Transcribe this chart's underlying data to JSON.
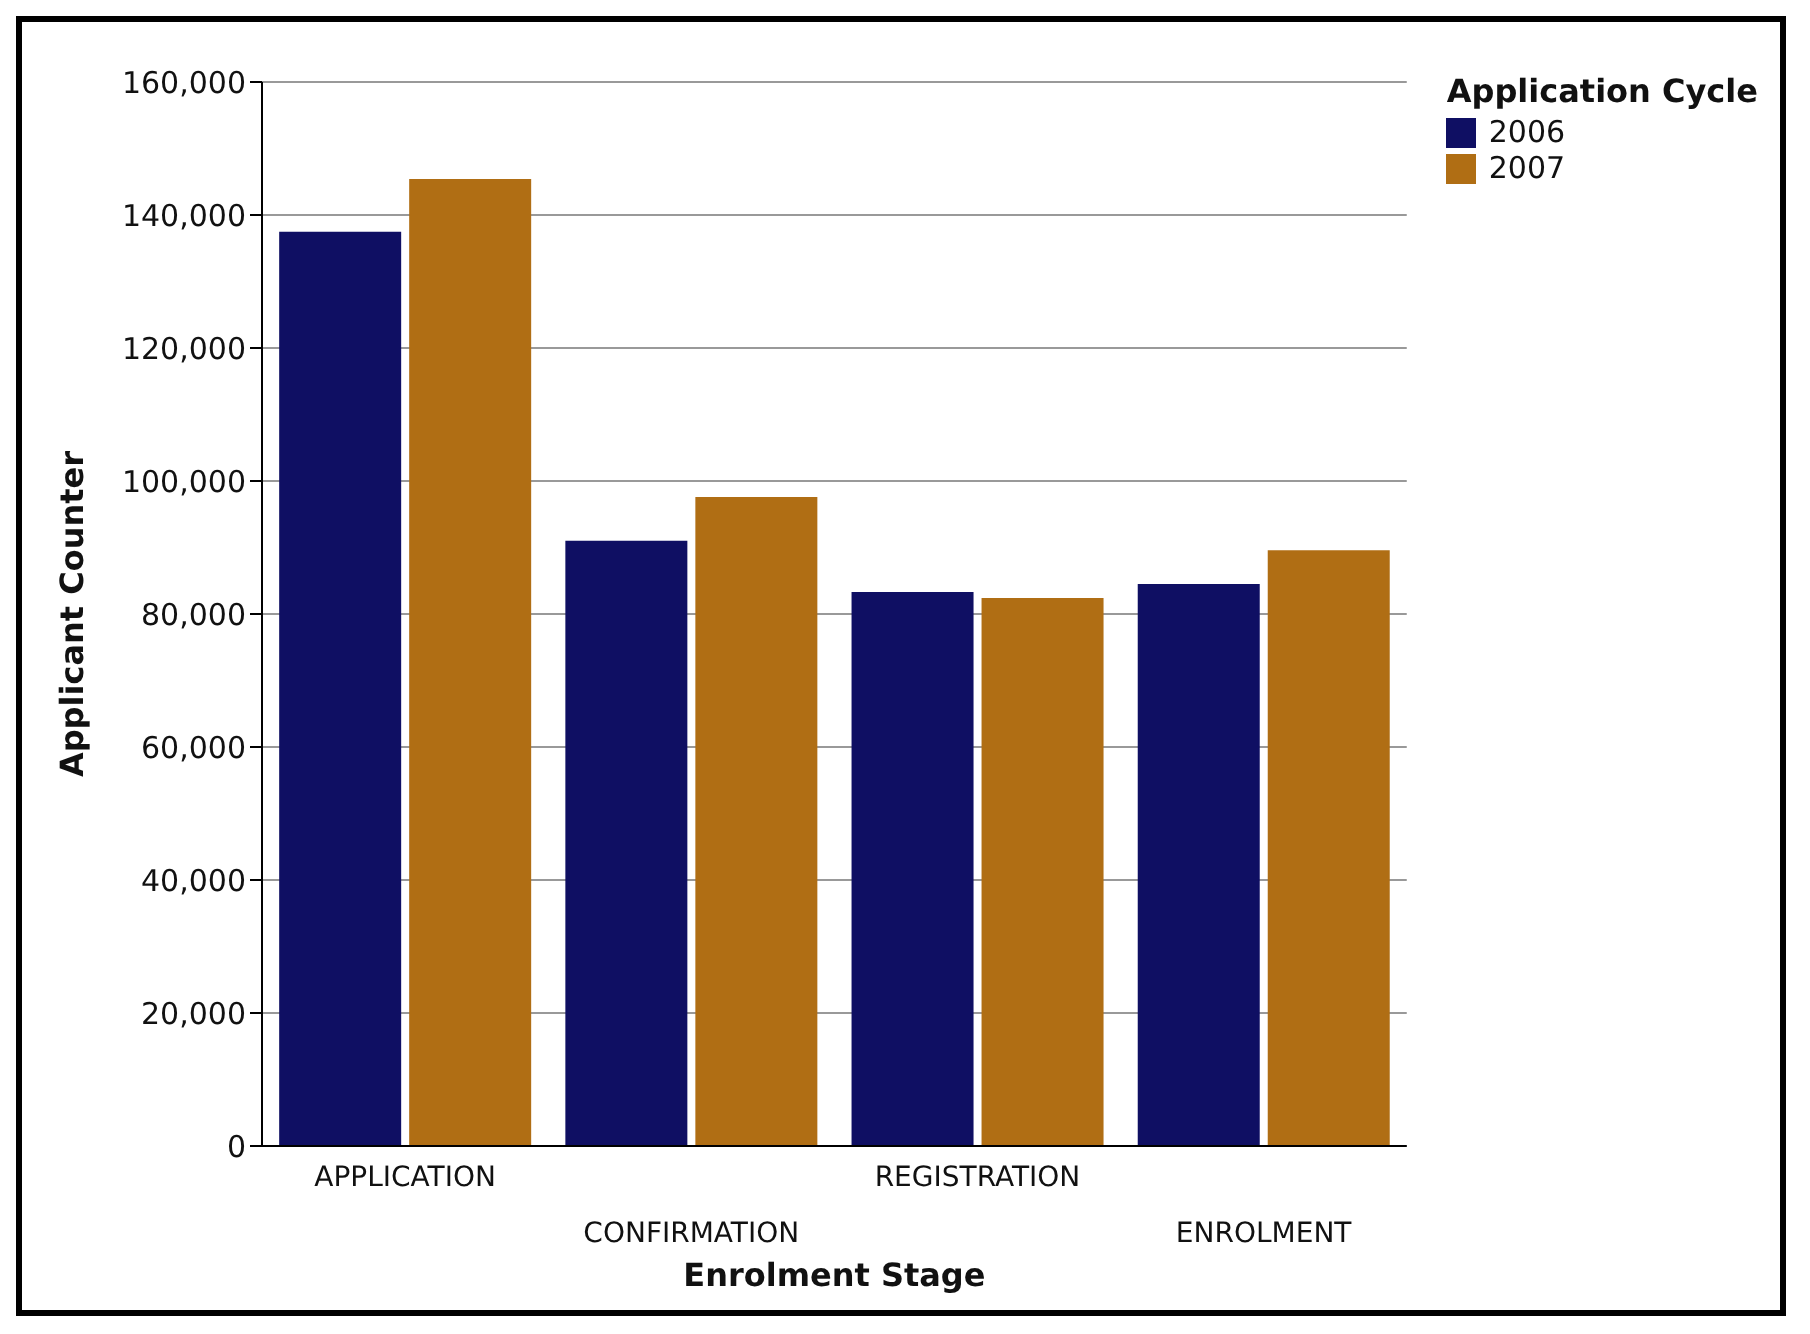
{
  "chart_data": {
    "type": "bar",
    "xlabel": "Enrolment Stage",
    "ylabel": "Applicant Counter",
    "legend_title": "Application Cycle",
    "categories": [
      "APPLICATION",
      "CONFIRMATION",
      "REGISTRATION",
      "ENROLMENT"
    ],
    "series": [
      {
        "name": "2006",
        "color": "#0f0f63",
        "values": [
          137500,
          91000,
          83300,
          84500
        ]
      },
      {
        "name": "2007",
        "color": "#b06e14",
        "values": [
          145400,
          97600,
          82400,
          89600
        ]
      }
    ],
    "ylim": [
      0,
      160000
    ],
    "yticks": [
      0,
      {
        "value": 20000,
        "label": "20,000"
      },
      {
        "value": 40000,
        "label": "40,000"
      },
      {
        "value": 60000,
        "label": "60,000"
      },
      {
        "value": 80000,
        "label": "80,000"
      },
      {
        "value": 100000,
        "label": "100,000"
      },
      {
        "value": 120000,
        "label": "120,000"
      },
      {
        "value": 140000,
        "label": "140,000"
      },
      {
        "value": 160000,
        "label": "160,000"
      }
    ],
    "grid": "y",
    "legend": "top right"
  }
}
